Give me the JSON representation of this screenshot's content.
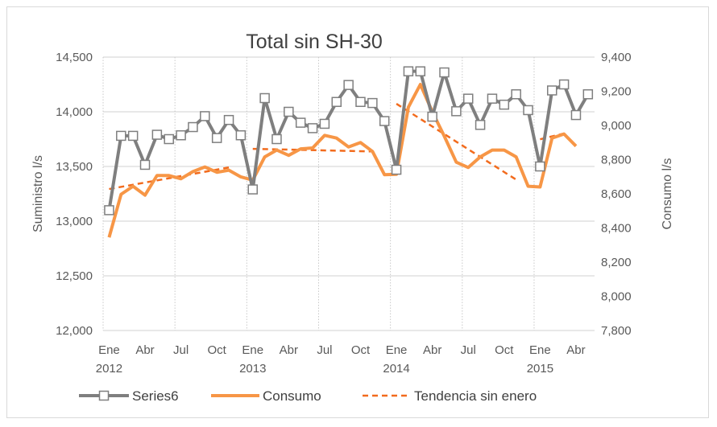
{
  "chart_data": {
    "type": "line",
    "title": "Total sin SH-30",
    "ylabel": "Suministro l/s",
    "y2label": "Consumo  l/s",
    "ylim": [
      12000,
      14500
    ],
    "y2lim": [
      7800,
      9400
    ],
    "yticks": [
      "12,000",
      "12,500",
      "13,000",
      "13,500",
      "14,000",
      "14,500"
    ],
    "y2ticks": [
      "7,800",
      "8,000",
      "8,200",
      "8,400",
      "8,600",
      "8,800",
      "9,000",
      "9,200",
      "9,400"
    ],
    "x_tick_labels": [
      {
        "month": 0,
        "label": "Ene",
        "year": "2012"
      },
      {
        "month": 3,
        "label": "Abr"
      },
      {
        "month": 6,
        "label": "Jul"
      },
      {
        "month": 9,
        "label": "Oct"
      },
      {
        "month": 12,
        "label": "Ene",
        "year": "2013"
      },
      {
        "month": 15,
        "label": "Abr"
      },
      {
        "month": 18,
        "label": "Jul"
      },
      {
        "month": 21,
        "label": "Oct"
      },
      {
        "month": 24,
        "label": "Ene",
        "year": "2014"
      },
      {
        "month": 27,
        "label": "Abr"
      },
      {
        "month": 30,
        "label": "Jul"
      },
      {
        "month": 33,
        "label": "Oct"
      },
      {
        "month": 36,
        "label": "Ene",
        "year": "2015"
      },
      {
        "month": 39,
        "label": "Abr"
      }
    ],
    "series": [
      {
        "name": "Series6",
        "axis": "left",
        "color": "#7f7f7f",
        "values": [
          13100,
          13780,
          13780,
          13515,
          13790,
          13750,
          13785,
          13860,
          13960,
          13760,
          13925,
          13785,
          13290,
          14125,
          13750,
          14000,
          13900,
          13850,
          13890,
          14090,
          14245,
          14090,
          14080,
          13915,
          13470,
          14370,
          14370,
          13955,
          14360,
          14005,
          14120,
          13880,
          14120,
          14065,
          14160,
          14015,
          13500,
          14195,
          14250,
          13970,
          14160
        ]
      },
      {
        "name": "Consumo",
        "axis": "right",
        "color": "#f79646",
        "values": [
          8345,
          8597,
          8644,
          8592,
          8707,
          8707,
          8688,
          8730,
          8757,
          8726,
          8738,
          8699,
          8680,
          8816,
          8856,
          8825,
          8863,
          8868,
          8942,
          8926,
          8874,
          8900,
          8848,
          8712,
          8714,
          9107,
          9240,
          9080,
          8937,
          8785,
          8754,
          8816,
          8856,
          8856,
          8816,
          8644,
          8640,
          8926,
          8950,
          8879
        ]
      }
    ],
    "trend": {
      "name": "Tendencia sin enero",
      "color": "#f26b1d",
      "segments": [
        {
          "from_month": 0,
          "to_month": 10,
          "from": 8628,
          "to": 8754
        },
        {
          "from_month": 12,
          "to_month": 22,
          "from": 8863,
          "to": 8848
        },
        {
          "from_month": 24,
          "to_month": 34,
          "from": 9127,
          "to": 8683
        },
        {
          "from_month": 36,
          "to_month": 38,
          "from": 8919,
          "to": 8953
        }
      ]
    },
    "legend": "bottom"
  }
}
